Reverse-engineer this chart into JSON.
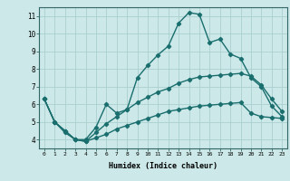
{
  "xlabel": "Humidex (Indice chaleur)",
  "bg_color": "#cce8e8",
  "line_color": "#1a6e6e",
  "grid_color": "#aacfcf",
  "series": [
    {
      "x": [
        0,
        1,
        2,
        3,
        4,
        5,
        6,
        7,
        8,
        9,
        10,
        11,
        12,
        13,
        14,
        15,
        16,
        17,
        18,
        19,
        20,
        21,
        22,
        23
      ],
      "y": [
        6.3,
        5.0,
        4.5,
        4.0,
        4.0,
        4.7,
        6.0,
        5.5,
        5.7,
        7.5,
        8.2,
        8.8,
        9.3,
        10.6,
        11.2,
        11.1,
        9.5,
        9.7,
        8.85,
        8.6,
        7.5,
        7.0,
        5.9,
        5.3
      ]
    },
    {
      "x": [
        0,
        1,
        2,
        3,
        4,
        5,
        6,
        7,
        8,
        9,
        10,
        11,
        12,
        13,
        14,
        15,
        16,
        17,
        18,
        19,
        20,
        21,
        22,
        23
      ],
      "y": [
        6.3,
        5.0,
        4.5,
        4.0,
        3.9,
        4.4,
        4.9,
        5.3,
        5.7,
        6.1,
        6.4,
        6.7,
        6.9,
        7.2,
        7.4,
        7.55,
        7.6,
        7.65,
        7.7,
        7.75,
        7.6,
        7.1,
        6.3,
        5.6
      ]
    },
    {
      "x": [
        0,
        1,
        2,
        3,
        4,
        5,
        6,
        7,
        8,
        9,
        10,
        11,
        12,
        13,
        14,
        15,
        16,
        17,
        18,
        19,
        20,
        21,
        22,
        23
      ],
      "y": [
        6.3,
        5.0,
        4.4,
        4.0,
        3.9,
        4.1,
        4.3,
        4.6,
        4.8,
        5.0,
        5.2,
        5.4,
        5.6,
        5.7,
        5.8,
        5.9,
        5.95,
        6.0,
        6.05,
        6.1,
        5.5,
        5.3,
        5.25,
        5.2
      ]
    }
  ],
  "ylim": [
    3.5,
    11.5
  ],
  "xlim": [
    -0.5,
    23.5
  ],
  "yticks": [
    4,
    5,
    6,
    7,
    8,
    9,
    10,
    11
  ],
  "xticks": [
    0,
    1,
    2,
    3,
    4,
    5,
    6,
    7,
    8,
    9,
    10,
    11,
    12,
    13,
    14,
    15,
    16,
    17,
    18,
    19,
    20,
    21,
    22,
    23
  ],
  "xtick_labels": [
    "0",
    "1",
    "2",
    "3",
    "4",
    "5",
    "6",
    "7",
    "8",
    "9",
    "10",
    "11",
    "12",
    "13",
    "14",
    "15",
    "16",
    "17",
    "18",
    "19",
    "20",
    "21",
    "22",
    "23"
  ],
  "marker": "D",
  "markersize": 2.2,
  "linewidth": 1.0
}
